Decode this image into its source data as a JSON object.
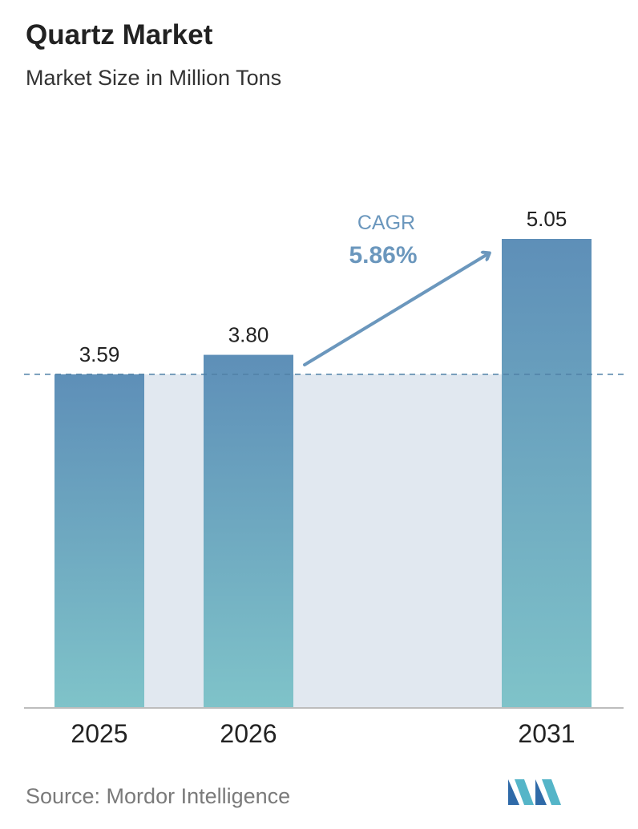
{
  "header": {
    "title": "Quartz Market",
    "subtitle": "Market Size in Million Tons"
  },
  "annotation": {
    "cagr_label": "CAGR",
    "cagr_value": "5.86%"
  },
  "footer": {
    "source": "Source:  Mordor Intelligence"
  },
  "colors": {
    "bar_top": "#5e8fb8",
    "bar_bottom": "#7fc3c9",
    "band": "#e1e8f0",
    "arrow": "#6b97bd",
    "dashed_line": "#4f80a6",
    "axis": "#bdbdbd"
  },
  "chart_data": {
    "type": "bar",
    "title": "Quartz Market",
    "subtitle": "Market Size in Million Tons",
    "categories": [
      "2025",
      "2026",
      "2031"
    ],
    "values": [
      3.59,
      3.8,
      5.05
    ],
    "value_labels": [
      "3.59",
      "3.80",
      "5.05"
    ],
    "ylim": [
      0,
      5.05
    ],
    "grid": false,
    "legend": "none",
    "reference_line": 3.59
  }
}
